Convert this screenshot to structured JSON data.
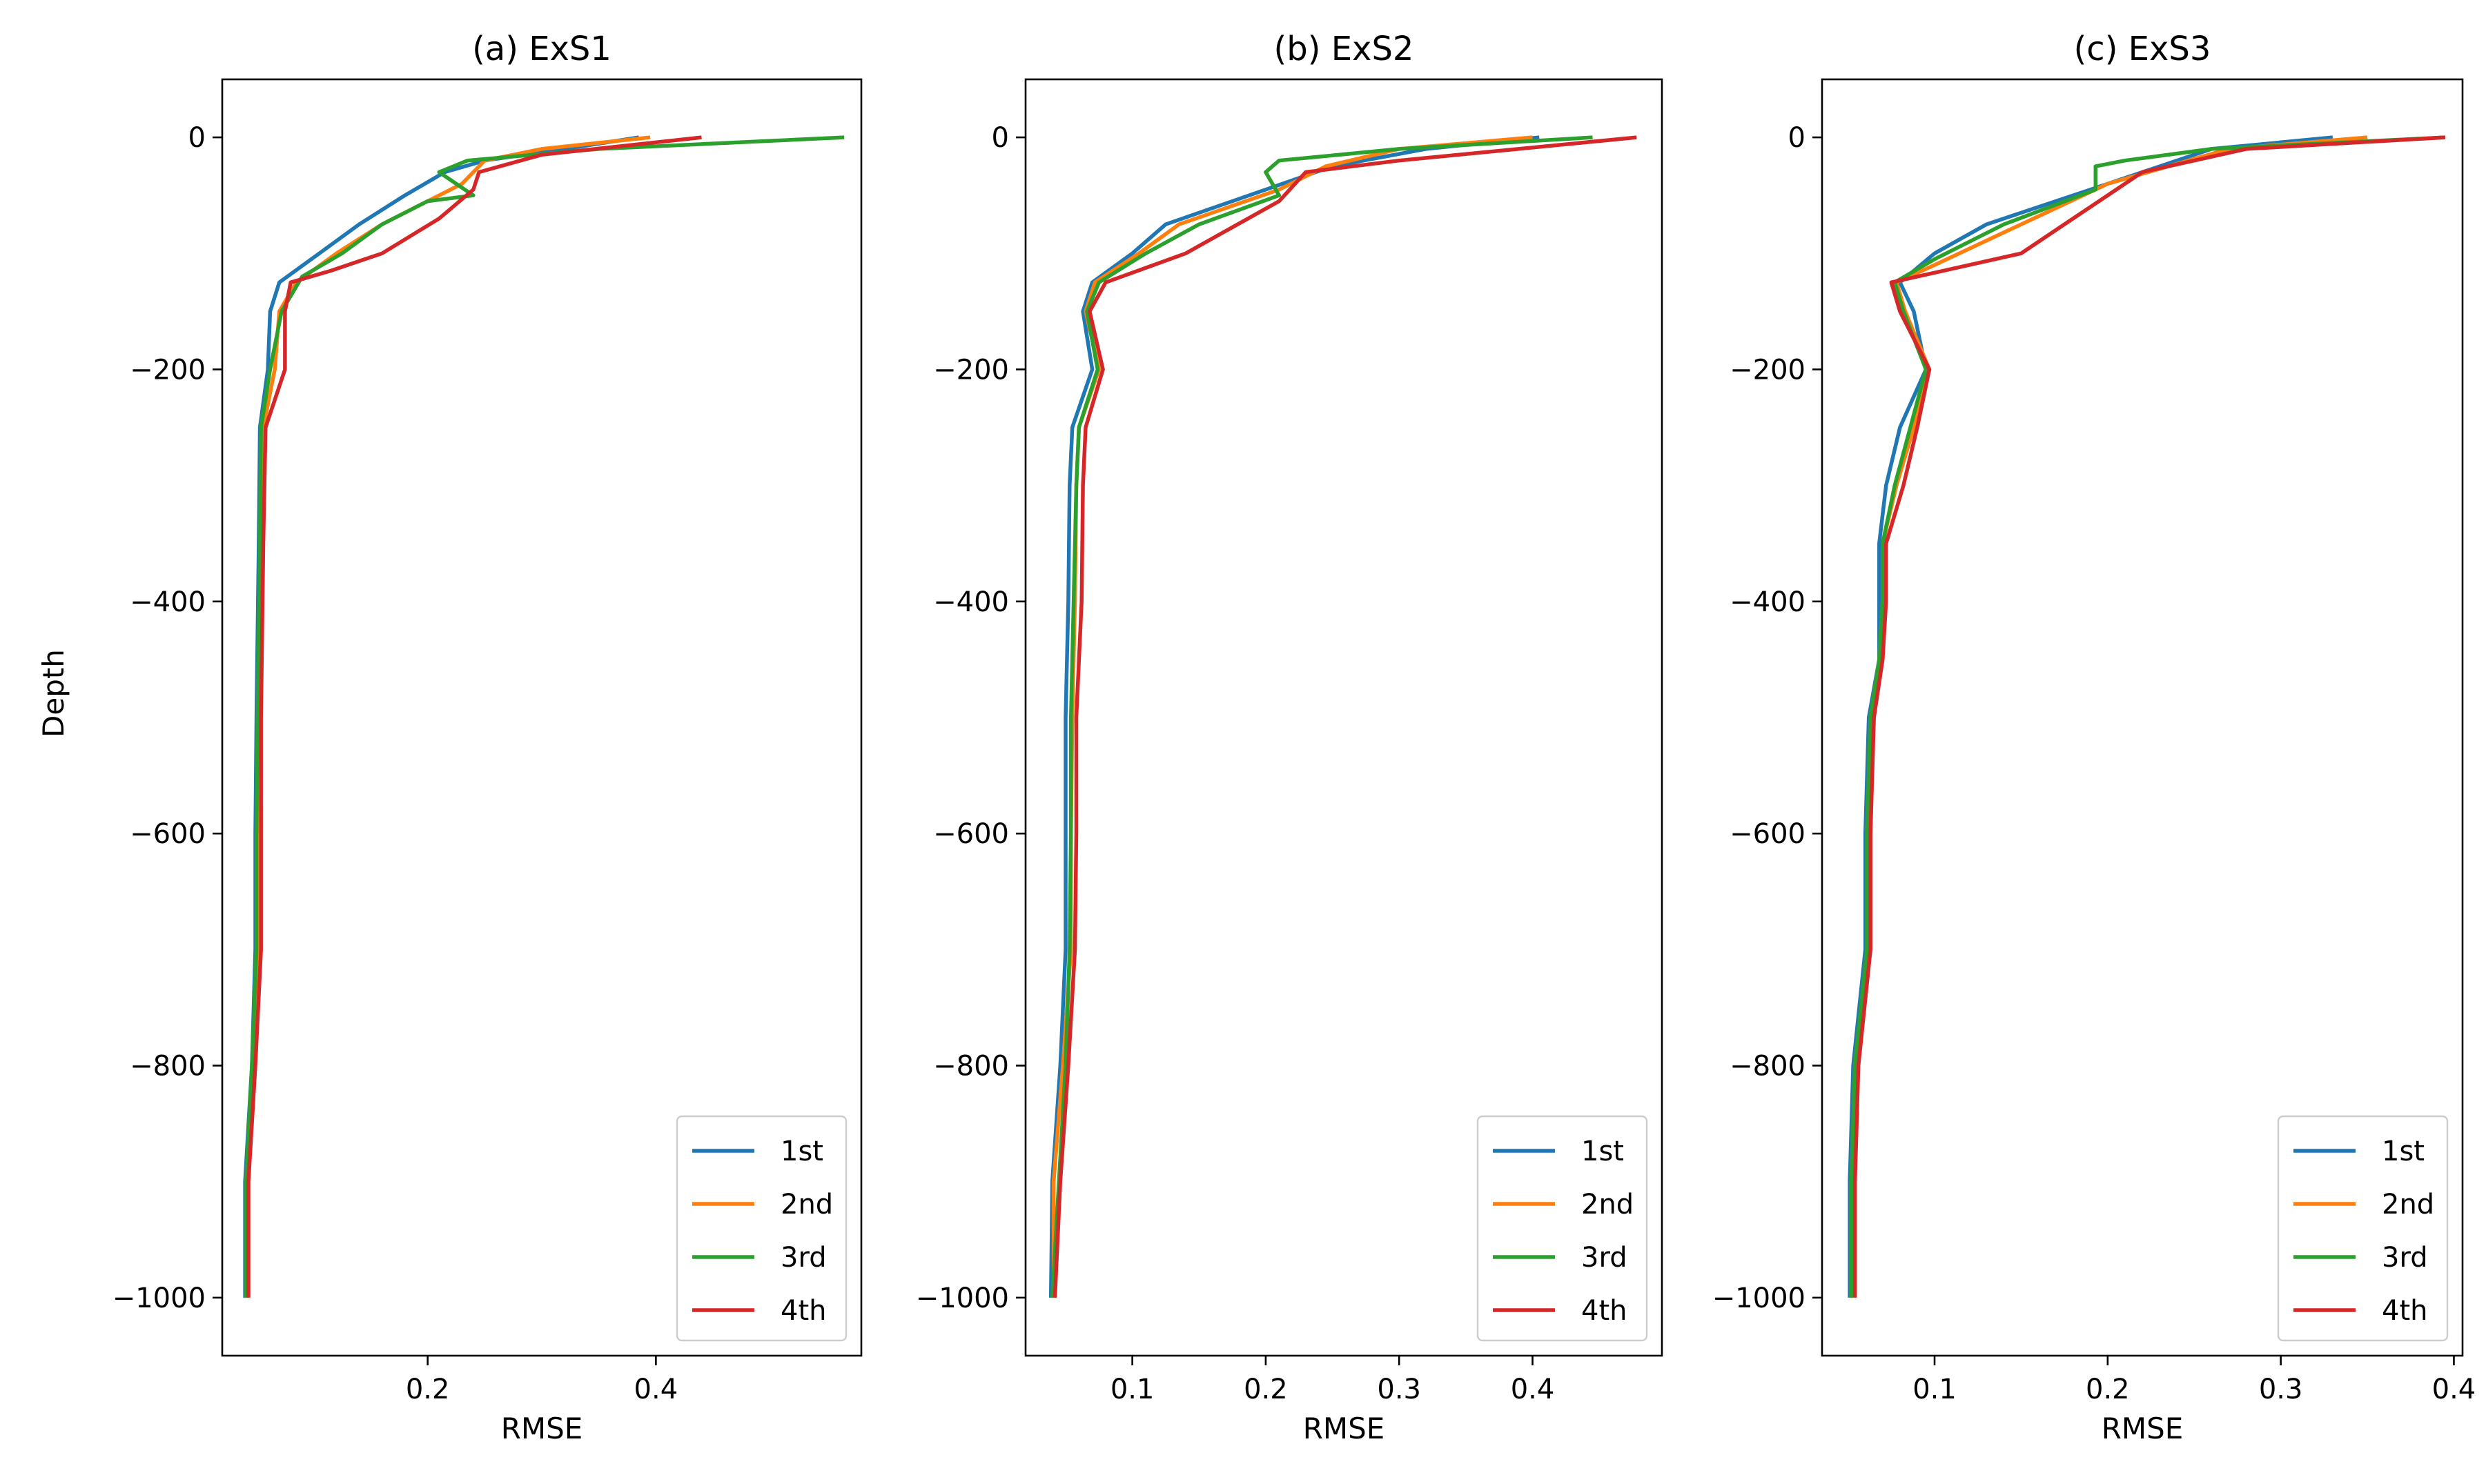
{
  "chart_data": [
    {
      "type": "line",
      "title": "(a) ExS1",
      "xlabel": "RMSE",
      "ylabel": "Depth",
      "xlim": [
        0.02,
        0.58
      ],
      "ylim": [
        -1050,
        50
      ],
      "xticks": [
        0.2,
        0.4
      ],
      "xtick_labels": [
        "0.2",
        "0.4"
      ],
      "yticks": [
        0,
        -200,
        -400,
        -600,
        -800,
        -1000
      ],
      "ytick_labels": [
        "0",
        "−200",
        "−400",
        "−600",
        "−800",
        "−1000"
      ],
      "legend_position": "lower-right",
      "series": [
        {
          "name": "1st",
          "color": "#1f77b4",
          "points": [
            [
              0.385,
              0
            ],
            [
              0.32,
              -10
            ],
            [
              0.25,
              -20
            ],
            [
              0.215,
              -30
            ],
            [
              0.18,
              -50
            ],
            [
              0.14,
              -75
            ],
            [
              0.105,
              -100
            ],
            [
              0.07,
              -125
            ],
            [
              0.062,
              -150
            ],
            [
              0.06,
              -200
            ],
            [
              0.053,
              -250
            ],
            [
              0.052,
              -350
            ],
            [
              0.05,
              -500
            ],
            [
              0.049,
              -600
            ],
            [
              0.049,
              -700
            ],
            [
              0.046,
              -800
            ],
            [
              0.04,
              -900
            ],
            [
              0.04,
              -1000
            ]
          ]
        },
        {
          "name": "2nd",
          "color": "#ff7f0e",
          "points": [
            [
              0.395,
              0
            ],
            [
              0.3,
              -10
            ],
            [
              0.25,
              -20
            ],
            [
              0.23,
              -40
            ],
            [
              0.2,
              -55
            ],
            [
              0.16,
              -75
            ],
            [
              0.12,
              -100
            ],
            [
              0.085,
              -125
            ],
            [
              0.07,
              -150
            ],
            [
              0.066,
              -200
            ],
            [
              0.056,
              -250
            ],
            [
              0.054,
              -350
            ],
            [
              0.052,
              -500
            ],
            [
              0.051,
              -600
            ],
            [
              0.051,
              -700
            ],
            [
              0.047,
              -800
            ],
            [
              0.041,
              -900
            ],
            [
              0.041,
              -1000
            ]
          ]
        },
        {
          "name": "3rd",
          "color": "#2ca02c",
          "points": [
            [
              0.565,
              0
            ],
            [
              0.35,
              -10
            ],
            [
              0.235,
              -20
            ],
            [
              0.21,
              -30
            ],
            [
              0.24,
              -50
            ],
            [
              0.2,
              -55
            ],
            [
              0.16,
              -75
            ],
            [
              0.125,
              -100
            ],
            [
              0.09,
              -120
            ],
            [
              0.072,
              -150
            ],
            [
              0.062,
              -200
            ],
            [
              0.054,
              -250
            ],
            [
              0.053,
              -350
            ],
            [
              0.051,
              -500
            ],
            [
              0.05,
              -600
            ],
            [
              0.05,
              -700
            ],
            [
              0.046,
              -800
            ],
            [
              0.041,
              -900
            ],
            [
              0.041,
              -1000
            ]
          ]
        },
        {
          "name": "4th",
          "color": "#d62728",
          "points": [
            [
              0.44,
              0
            ],
            [
              0.3,
              -15
            ],
            [
              0.245,
              -30
            ],
            [
              0.24,
              -45
            ],
            [
              0.21,
              -70
            ],
            [
              0.16,
              -100
            ],
            [
              0.115,
              -115
            ],
            [
              0.08,
              -125
            ],
            [
              0.075,
              -150
            ],
            [
              0.075,
              -200
            ],
            [
              0.058,
              -250
            ],
            [
              0.056,
              -350
            ],
            [
              0.054,
              -500
            ],
            [
              0.054,
              -600
            ],
            [
              0.054,
              -700
            ],
            [
              0.049,
              -800
            ],
            [
              0.043,
              -900
            ],
            [
              0.043,
              -1000
            ]
          ]
        }
      ]
    },
    {
      "type": "line",
      "title": "(b) ExS2",
      "xlabel": "RMSE",
      "ylabel": "",
      "xlim": [
        0.02,
        0.497
      ],
      "ylim": [
        -1050,
        50
      ],
      "xticks": [
        0.1,
        0.2,
        0.3,
        0.4
      ],
      "xtick_labels": [
        "0.1",
        "0.2",
        "0.3",
        "0.4"
      ],
      "yticks": [
        0,
        -200,
        -400,
        -600,
        -800,
        -1000
      ],
      "ytick_labels": [
        "0",
        "−200",
        "−400",
        "−600",
        "−800",
        "−1000"
      ],
      "legend_position": "lower-right",
      "series": [
        {
          "name": "1st",
          "color": "#1f77b4",
          "points": [
            [
              0.405,
              0
            ],
            [
              0.32,
              -10
            ],
            [
              0.25,
              -25
            ],
            [
              0.2,
              -45
            ],
            [
              0.125,
              -75
            ],
            [
              0.1,
              -100
            ],
            [
              0.07,
              -125
            ],
            [
              0.063,
              -150
            ],
            [
              0.07,
              -200
            ],
            [
              0.055,
              -250
            ],
            [
              0.053,
              -300
            ],
            [
              0.052,
              -400
            ],
            [
              0.05,
              -500
            ],
            [
              0.05,
              -600
            ],
            [
              0.05,
              -700
            ],
            [
              0.046,
              -800
            ],
            [
              0.04,
              -900
            ],
            [
              0.039,
              -1000
            ]
          ]
        },
        {
          "name": "2nd",
          "color": "#ff7f0e",
          "points": [
            [
              0.4,
              0
            ],
            [
              0.3,
              -10
            ],
            [
              0.245,
              -25
            ],
            [
              0.21,
              -45
            ],
            [
              0.135,
              -75
            ],
            [
              0.105,
              -100
            ],
            [
              0.072,
              -125
            ],
            [
              0.065,
              -150
            ],
            [
              0.075,
              -200
            ],
            [
              0.06,
              -250
            ],
            [
              0.058,
              -300
            ],
            [
              0.057,
              -400
            ],
            [
              0.055,
              -500
            ],
            [
              0.054,
              -600
            ],
            [
              0.054,
              -700
            ],
            [
              0.048,
              -800
            ],
            [
              0.041,
              -900
            ],
            [
              0.041,
              -1000
            ]
          ]
        },
        {
          "name": "3rd",
          "color": "#2ca02c",
          "points": [
            [
              0.445,
              0
            ],
            [
              0.3,
              -10
            ],
            [
              0.21,
              -20
            ],
            [
              0.2,
              -30
            ],
            [
              0.21,
              -50
            ],
            [
              0.15,
              -75
            ],
            [
              0.11,
              -100
            ],
            [
              0.075,
              -125
            ],
            [
              0.066,
              -150
            ],
            [
              0.074,
              -200
            ],
            [
              0.06,
              -250
            ],
            [
              0.058,
              -300
            ],
            [
              0.056,
              -400
            ],
            [
              0.054,
              -500
            ],
            [
              0.054,
              -600
            ],
            [
              0.053,
              -700
            ],
            [
              0.05,
              -800
            ],
            [
              0.045,
              -900
            ],
            [
              0.04,
              -1000
            ]
          ]
        },
        {
          "name": "4th",
          "color": "#d62728",
          "points": [
            [
              0.478,
              0
            ],
            [
              0.3,
              -20
            ],
            [
              0.23,
              -30
            ],
            [
              0.21,
              -55
            ],
            [
              0.14,
              -100
            ],
            [
              0.08,
              -125
            ],
            [
              0.068,
              -150
            ],
            [
              0.078,
              -200
            ],
            [
              0.065,
              -250
            ],
            [
              0.063,
              -300
            ],
            [
              0.062,
              -400
            ],
            [
              0.058,
              -500
            ],
            [
              0.058,
              -600
            ],
            [
              0.057,
              -700
            ],
            [
              0.052,
              -800
            ],
            [
              0.046,
              -900
            ],
            [
              0.042,
              -1000
            ]
          ]
        }
      ]
    },
    {
      "type": "line",
      "title": "(c) ExS3",
      "xlabel": "RMSE",
      "ylabel": "",
      "xlim": [
        0.035,
        0.405
      ],
      "ylim": [
        -1050,
        50
      ],
      "xticks": [
        0.1,
        0.2,
        0.3,
        0.4
      ],
      "xtick_labels": [
        "0.1",
        "0.2",
        "0.3",
        "0.4"
      ],
      "yticks": [
        0,
        -200,
        -400,
        -600,
        -800,
        -1000
      ],
      "ytick_labels": [
        "0",
        "−200",
        "−400",
        "−600",
        "−800",
        "−1000"
      ],
      "legend_position": "lower-right",
      "series": [
        {
          "name": "1st",
          "color": "#1f77b4",
          "points": [
            [
              0.33,
              0
            ],
            [
              0.26,
              -10
            ],
            [
              0.19,
              -45
            ],
            [
              0.13,
              -75
            ],
            [
              0.1,
              -100
            ],
            [
              0.08,
              -125
            ],
            [
              0.088,
              -150
            ],
            [
              0.095,
              -200
            ],
            [
              0.08,
              -250
            ],
            [
              0.072,
              -300
            ],
            [
              0.068,
              -350
            ],
            [
              0.068,
              -400
            ],
            [
              0.068,
              -450
            ],
            [
              0.062,
              -500
            ],
            [
              0.06,
              -600
            ],
            [
              0.06,
              -700
            ],
            [
              0.053,
              -800
            ],
            [
              0.051,
              -900
            ],
            [
              0.051,
              -1000
            ]
          ]
        },
        {
          "name": "2nd",
          "color": "#ff7f0e",
          "points": [
            [
              0.35,
              0
            ],
            [
              0.27,
              -10
            ],
            [
              0.2,
              -40
            ],
            [
              0.15,
              -75
            ],
            [
              0.1,
              -110
            ],
            [
              0.078,
              -125
            ],
            [
              0.083,
              -150
            ],
            [
              0.097,
              -200
            ],
            [
              0.088,
              -250
            ],
            [
              0.078,
              -300
            ],
            [
              0.07,
              -350
            ],
            [
              0.07,
              -400
            ],
            [
              0.068,
              -450
            ],
            [
              0.063,
              -500
            ],
            [
              0.061,
              -600
            ],
            [
              0.061,
              -700
            ],
            [
              0.054,
              -800
            ],
            [
              0.052,
              -900
            ],
            [
              0.052,
              -1000
            ]
          ]
        },
        {
          "name": "3rd",
          "color": "#2ca02c",
          "points": [
            [
              0.395,
              0
            ],
            [
              0.26,
              -10
            ],
            [
              0.21,
              -20
            ],
            [
              0.193,
              -25
            ],
            [
              0.193,
              -45
            ],
            [
              0.14,
              -75
            ],
            [
              0.1,
              -105
            ],
            [
              0.077,
              -125
            ],
            [
              0.082,
              -150
            ],
            [
              0.095,
              -200
            ],
            [
              0.086,
              -250
            ],
            [
              0.077,
              -300
            ],
            [
              0.07,
              -350
            ],
            [
              0.07,
              -400
            ],
            [
              0.068,
              -450
            ],
            [
              0.063,
              -500
            ],
            [
              0.061,
              -600
            ],
            [
              0.061,
              -700
            ],
            [
              0.054,
              -800
            ],
            [
              0.052,
              -900
            ],
            [
              0.052,
              -1000
            ]
          ]
        },
        {
          "name": "4th",
          "color": "#d62728",
          "points": [
            [
              0.395,
              0
            ],
            [
              0.28,
              -10
            ],
            [
              0.22,
              -30
            ],
            [
              0.2,
              -50
            ],
            [
              0.175,
              -75
            ],
            [
              0.15,
              -100
            ],
            [
              0.075,
              -125
            ],
            [
              0.08,
              -150
            ],
            [
              0.097,
              -200
            ],
            [
              0.09,
              -250
            ],
            [
              0.082,
              -300
            ],
            [
              0.072,
              -350
            ],
            [
              0.072,
              -400
            ],
            [
              0.07,
              -450
            ],
            [
              0.065,
              -500
            ],
            [
              0.063,
              -600
            ],
            [
              0.063,
              -700
            ],
            [
              0.056,
              -800
            ],
            [
              0.054,
              -900
            ],
            [
              0.054,
              -1000
            ]
          ]
        }
      ]
    }
  ]
}
